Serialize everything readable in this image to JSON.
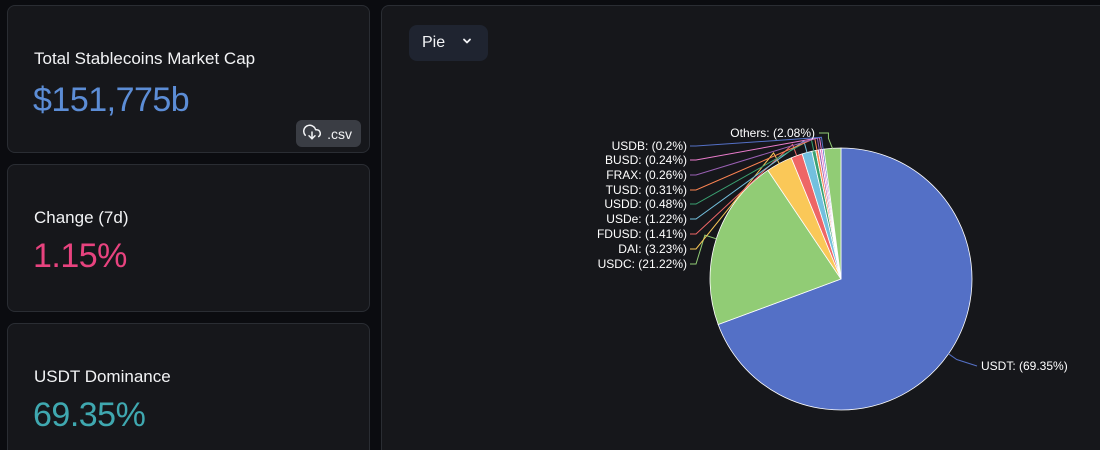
{
  "cards": {
    "market_cap": {
      "label": "Total Stablecoins Market Cap",
      "value": "$151,775b",
      "color": "#5c8dd6"
    },
    "change": {
      "label": "Change (7d)",
      "value": "1.15%",
      "color": "#e8437f"
    },
    "dominance": {
      "label": "USDT Dominance",
      "value": "69.35%",
      "color": "#3fa8b0"
    },
    "csv_label": ".csv",
    "csv_icon": "download-cloud-icon"
  },
  "chart_controls": {
    "type_select": "Pie",
    "type_icon": "chevron-down-icon"
  },
  "chart_data": {
    "type": "pie",
    "slices": [
      {
        "name": "USDT",
        "value": 69.35,
        "label": "USDT: (69.35%)",
        "color": "#5470c6"
      },
      {
        "name": "USDC",
        "value": 21.22,
        "label": "USDC: (21.22%)",
        "color": "#91cc75"
      },
      {
        "name": "DAI",
        "value": 3.23,
        "label": "DAI: (3.23%)",
        "color": "#fac858"
      },
      {
        "name": "FDUSD",
        "value": 1.41,
        "label": "FDUSD: (1.41%)",
        "color": "#ee6666"
      },
      {
        "name": "USDe",
        "value": 1.22,
        "label": "USDe: (1.22%)",
        "color": "#73c0de"
      },
      {
        "name": "USDD",
        "value": 0.48,
        "label": "USDD: (0.48%)",
        "color": "#3ba272"
      },
      {
        "name": "TUSD",
        "value": 0.31,
        "label": "TUSD: (0.31%)",
        "color": "#fc8452"
      },
      {
        "name": "FRAX",
        "value": 0.26,
        "label": "FRAX: (0.26%)",
        "color": "#9a60b4"
      },
      {
        "name": "BUSD",
        "value": 0.24,
        "label": "BUSD: (0.24%)",
        "color": "#ea7ccc"
      },
      {
        "name": "USDB",
        "value": 0.2,
        "label": "USDB: (0.2%)",
        "color": "#5470c6"
      },
      {
        "name": "Others",
        "value": 2.08,
        "label": "Others: (2.08%)",
        "color": "#91cc75"
      }
    ]
  }
}
